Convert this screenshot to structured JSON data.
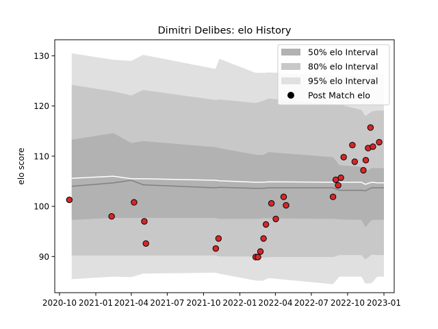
{
  "chart_data": {
    "type": "scatter",
    "title": "Dimitri Delibes: elo History",
    "xlabel": "",
    "ylabel": "elo score",
    "xlim": [
      "2020-09-19",
      "2023-01-27"
    ],
    "ylim": [
      82.8,
      133.2
    ],
    "x_ticks": [
      "2020-10",
      "2021-01",
      "2021-04",
      "2021-07",
      "2021-10",
      "2022-01",
      "2022-04",
      "2022-07",
      "2022-10",
      "2023-01"
    ],
    "y_ticks": [
      90,
      100,
      110,
      120,
      130
    ],
    "grid": false,
    "legend_position": "top-right",
    "legend": [
      {
        "label": "50% elo Interval",
        "kind": "band50"
      },
      {
        "label": "80% elo Interval",
        "kind": "band80"
      },
      {
        "label": "95% elo Interval",
        "kind": "band95"
      },
      {
        "label": "Post Match elo",
        "kind": "marker"
      }
    ],
    "colors": {
      "band50": "#b2b2b2",
      "band80": "#c8c8c8",
      "band95": "#e0e0e0",
      "mean_line": "#ffffff",
      "median_line": "#808080",
      "marker_fill": "#d62728",
      "marker_edge": "#000000"
    },
    "bands": {
      "x": [
        "2020-11-01",
        "2021-02-15",
        "2021-04-01",
        "2021-05-01",
        "2021-10-31",
        "2021-11-10",
        "2022-02-10",
        "2022-03-01",
        "2022-03-15",
        "2022-08-25",
        "2022-09-10",
        "2022-11-05",
        "2022-11-15",
        "2022-12-01",
        "2022-12-15",
        "2023-01-01"
      ],
      "q95_upper": [
        130.5,
        129.2,
        129.0,
        130.2,
        127.4,
        129.4,
        126.6,
        126.6,
        126.7,
        126.1,
        126.1,
        126.1,
        124.8,
        126.4,
        126.4,
        126.4
      ],
      "q80_upper": [
        124.2,
        122.9,
        122.1,
        123.2,
        121.2,
        121.3,
        120.6,
        121.0,
        121.5,
        120.3,
        120.3,
        119.2,
        118.0,
        118.9,
        119.1,
        119.1
      ],
      "q50_upper": [
        113.3,
        114.6,
        112.6,
        113.0,
        111.8,
        111.6,
        110.3,
        110.2,
        110.8,
        109.8,
        108.2,
        107.9,
        106.9,
        107.6,
        107.6,
        107.6
      ],
      "q50_lower": [
        97.3,
        97.7,
        97.7,
        97.7,
        97.7,
        97.5,
        97.5,
        97.6,
        97.6,
        97.5,
        97.4,
        97.3,
        95.9,
        97.3,
        97.3,
        97.3
      ],
      "q80_lower": [
        90.2,
        90.2,
        90.2,
        90.2,
        90.2,
        90.0,
        90.0,
        89.8,
        89.9,
        89.9,
        90.3,
        90.3,
        89.4,
        90.4,
        90.3,
        90.3
      ],
      "q95_lower": [
        85.5,
        86.0,
        85.9,
        86.6,
        86.8,
        86.6,
        85.2,
        85.2,
        85.7,
        84.5,
        86.0,
        86.0,
        84.6,
        84.7,
        86.0,
        86.0
      ],
      "mean": [
        105.6,
        106.0,
        105.5,
        105.5,
        105.2,
        105.1,
        104.8,
        104.8,
        104.9,
        104.8,
        104.8,
        104.8,
        104.4,
        104.8,
        104.7,
        104.7
      ],
      "median": [
        104.0,
        104.7,
        105.2,
        104.3,
        103.7,
        103.8,
        103.6,
        103.6,
        103.7,
        103.7,
        103.2,
        103.2,
        103.1,
        103.7,
        103.7,
        103.7
      ]
    },
    "points": [
      {
        "x": "2020-10-26",
        "y": 101.3
      },
      {
        "x": "2021-02-10",
        "y": 98.0
      },
      {
        "x": "2021-04-08",
        "y": 100.8
      },
      {
        "x": "2021-05-04",
        "y": 97.0
      },
      {
        "x": "2021-05-08",
        "y": 92.6
      },
      {
        "x": "2021-11-01",
        "y": 91.6
      },
      {
        "x": "2021-11-08",
        "y": 93.6
      },
      {
        "x": "2022-02-10",
        "y": 89.9
      },
      {
        "x": "2022-02-16",
        "y": 89.9
      },
      {
        "x": "2022-02-22",
        "y": 91.0
      },
      {
        "x": "2022-03-02",
        "y": 93.6
      },
      {
        "x": "2022-03-08",
        "y": 96.4
      },
      {
        "x": "2022-03-22",
        "y": 100.6
      },
      {
        "x": "2022-04-02",
        "y": 97.5
      },
      {
        "x": "2022-04-22",
        "y": 101.9
      },
      {
        "x": "2022-04-28",
        "y": 100.2
      },
      {
        "x": "2022-08-25",
        "y": 101.9
      },
      {
        "x": "2022-09-01",
        "y": 105.3
      },
      {
        "x": "2022-09-07",
        "y": 104.2
      },
      {
        "x": "2022-09-14",
        "y": 105.7
      },
      {
        "x": "2022-09-21",
        "y": 109.8
      },
      {
        "x": "2022-10-13",
        "y": 112.2
      },
      {
        "x": "2022-10-19",
        "y": 108.9
      },
      {
        "x": "2022-11-10",
        "y": 107.2
      },
      {
        "x": "2022-11-16",
        "y": 109.2
      },
      {
        "x": "2022-11-22",
        "y": 111.6
      },
      {
        "x": "2022-11-28",
        "y": 115.7
      },
      {
        "x": "2022-12-04",
        "y": 111.9
      },
      {
        "x": "2022-12-20",
        "y": 112.8
      }
    ]
  }
}
